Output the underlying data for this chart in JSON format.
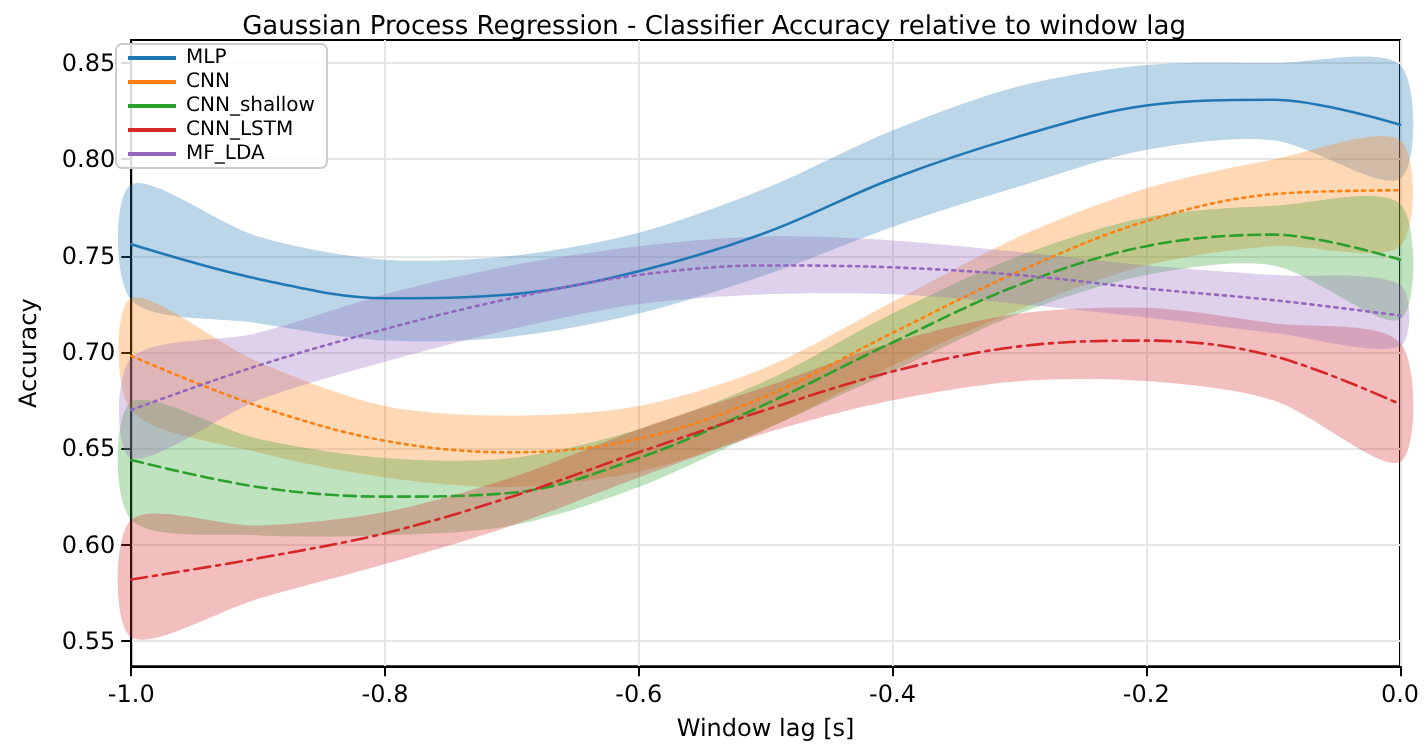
{
  "chart_data": {
    "type": "line",
    "title": "Gaussian Process Regression - Classifier Accuracy relative to window lag",
    "xlabel": "Window lag [s]",
    "ylabel": "Accuracy",
    "x": [
      -1.0,
      -0.9,
      -0.8,
      -0.7,
      -0.6,
      -0.5,
      -0.4,
      -0.3,
      -0.2,
      -0.1,
      0.0
    ],
    "series": [
      {
        "name": "MLP",
        "color": "#1f77b4",
        "line_style": "solid",
        "values": [
          0.756,
          0.738,
          0.728,
          0.73,
          0.742,
          0.762,
          0.79,
          0.812,
          0.828,
          0.831,
          0.818
        ],
        "upper": [
          0.787,
          0.76,
          0.748,
          0.75,
          0.762,
          0.785,
          0.815,
          0.838,
          0.849,
          0.85,
          0.849
        ],
        "lower": [
          0.727,
          0.715,
          0.706,
          0.708,
          0.72,
          0.74,
          0.765,
          0.786,
          0.805,
          0.81,
          0.79
        ]
      },
      {
        "name": "CNN",
        "color": "#ff7f0e",
        "line_style": "dotted",
        "values": [
          0.698,
          0.672,
          0.654,
          0.648,
          0.655,
          0.677,
          0.71,
          0.742,
          0.768,
          0.782,
          0.784
        ],
        "upper": [
          0.728,
          0.695,
          0.672,
          0.667,
          0.672,
          0.692,
          0.726,
          0.76,
          0.785,
          0.8,
          0.81
        ],
        "lower": [
          0.67,
          0.648,
          0.635,
          0.63,
          0.638,
          0.66,
          0.693,
          0.722,
          0.745,
          0.755,
          0.755
        ]
      },
      {
        "name": "CNN_shallow",
        "color": "#2ca02c",
        "line_style": "dashed",
        "values": [
          0.644,
          0.63,
          0.625,
          0.627,
          0.645,
          0.673,
          0.705,
          0.735,
          0.755,
          0.761,
          0.748
        ],
        "upper": [
          0.674,
          0.655,
          0.645,
          0.645,
          0.66,
          0.685,
          0.72,
          0.75,
          0.77,
          0.776,
          0.777
        ],
        "lower": [
          0.613,
          0.605,
          0.605,
          0.61,
          0.63,
          0.66,
          0.69,
          0.72,
          0.74,
          0.745,
          0.717
        ]
      },
      {
        "name": "CNN_LSTM",
        "color": "#d62728",
        "line_style": "dashdot",
        "values": [
          0.582,
          0.593,
          0.606,
          0.625,
          0.648,
          0.67,
          0.69,
          0.703,
          0.706,
          0.698,
          0.673
        ],
        "upper": [
          0.613,
          0.61,
          0.617,
          0.635,
          0.66,
          0.682,
          0.705,
          0.72,
          0.723,
          0.715,
          0.705
        ],
        "lower": [
          0.552,
          0.572,
          0.59,
          0.61,
          0.635,
          0.658,
          0.675,
          0.685,
          0.685,
          0.675,
          0.643
        ]
      },
      {
        "name": "MF_LDA",
        "color": "#9467bd",
        "line_style": "dotted",
        "values": [
          0.67,
          0.693,
          0.712,
          0.728,
          0.74,
          0.745,
          0.744,
          0.74,
          0.733,
          0.727,
          0.719
        ],
        "upper": [
          0.697,
          0.71,
          0.73,
          0.745,
          0.755,
          0.76,
          0.758,
          0.752,
          0.745,
          0.74,
          0.735
        ],
        "lower": [
          0.645,
          0.675,
          0.695,
          0.712,
          0.725,
          0.73,
          0.73,
          0.725,
          0.718,
          0.71,
          0.703
        ]
      }
    ],
    "xlim": [
      -1.0,
      0.0
    ],
    "xticks": [
      {
        "value": -1.0,
        "label": "-1.0"
      },
      {
        "value": -0.8,
        "label": "-0.8"
      },
      {
        "value": -0.6,
        "label": "-0.6"
      },
      {
        "value": -0.4,
        "label": "-0.4"
      },
      {
        "value": -0.2,
        "label": "-0.2"
      },
      {
        "value": 0.0,
        "label": "0.0"
      }
    ],
    "ylim": [
      0.537,
      0.862
    ],
    "yticks": [
      {
        "value": 0.55,
        "label": "0.55"
      },
      {
        "value": 0.6,
        "label": "0.60"
      },
      {
        "value": 0.65,
        "label": "0.65"
      },
      {
        "value": 0.7,
        "label": "0.70"
      },
      {
        "value": 0.75,
        "label": "0.75"
      },
      {
        "value": 0.8,
        "label": "0.80"
      },
      {
        "value": 0.85,
        "label": "0.85"
      }
    ],
    "grid": true,
    "legend": "top left",
    "marker": "none"
  }
}
